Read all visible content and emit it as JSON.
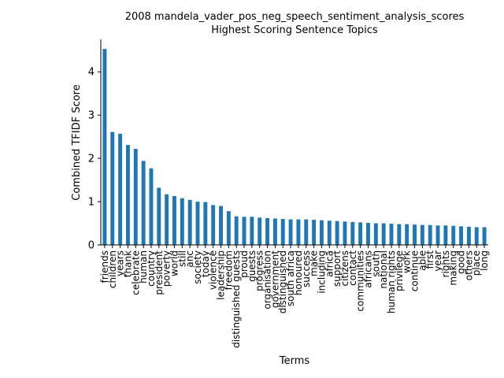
{
  "chart_data": {
    "type": "bar",
    "title": "2008 mandela_vader_pos_neg_speech_sentiment_analysis_scores",
    "subtitle": "Highest Scoring Sentence Topics",
    "xlabel": "Terms",
    "ylabel": "Combined TFIDF Score",
    "ylim": [
      0,
      4.75
    ],
    "yticks": [
      0,
      1,
      2,
      3,
      4
    ],
    "grid": false,
    "bar_color": "#1f77b4",
    "categories": [
      "friends",
      "children",
      "years",
      "thank",
      "celebrate",
      "human",
      "country",
      "president",
      "poverty",
      "world",
      "still",
      "anc",
      "society",
      "today",
      "violence",
      "leadership",
      "freedom",
      "distinguished guests",
      "proud",
      "guests",
      "progress",
      "organisation",
      "government",
      "distinguished",
      "south africa",
      "honoured",
      "success",
      "make",
      "including",
      "africa",
      "support",
      "citizens",
      "contact",
      "communities",
      "africans",
      "south",
      "national",
      "human rights",
      "privilege",
      "work",
      "continue",
      "able",
      "first",
      "year",
      "rights",
      "making",
      "good",
      "others",
      "place",
      "long"
    ],
    "values": [
      4.53,
      2.61,
      2.57,
      2.31,
      2.22,
      1.94,
      1.77,
      1.32,
      1.17,
      1.13,
      1.08,
      1.04,
      1.0,
      0.99,
      0.92,
      0.9,
      0.78,
      0.66,
      0.65,
      0.65,
      0.63,
      0.62,
      0.61,
      0.6,
      0.59,
      0.59,
      0.59,
      0.58,
      0.57,
      0.56,
      0.55,
      0.54,
      0.53,
      0.52,
      0.51,
      0.5,
      0.5,
      0.49,
      0.48,
      0.48,
      0.47,
      0.46,
      0.46,
      0.45,
      0.45,
      0.44,
      0.43,
      0.42,
      0.41,
      0.41
    ]
  }
}
